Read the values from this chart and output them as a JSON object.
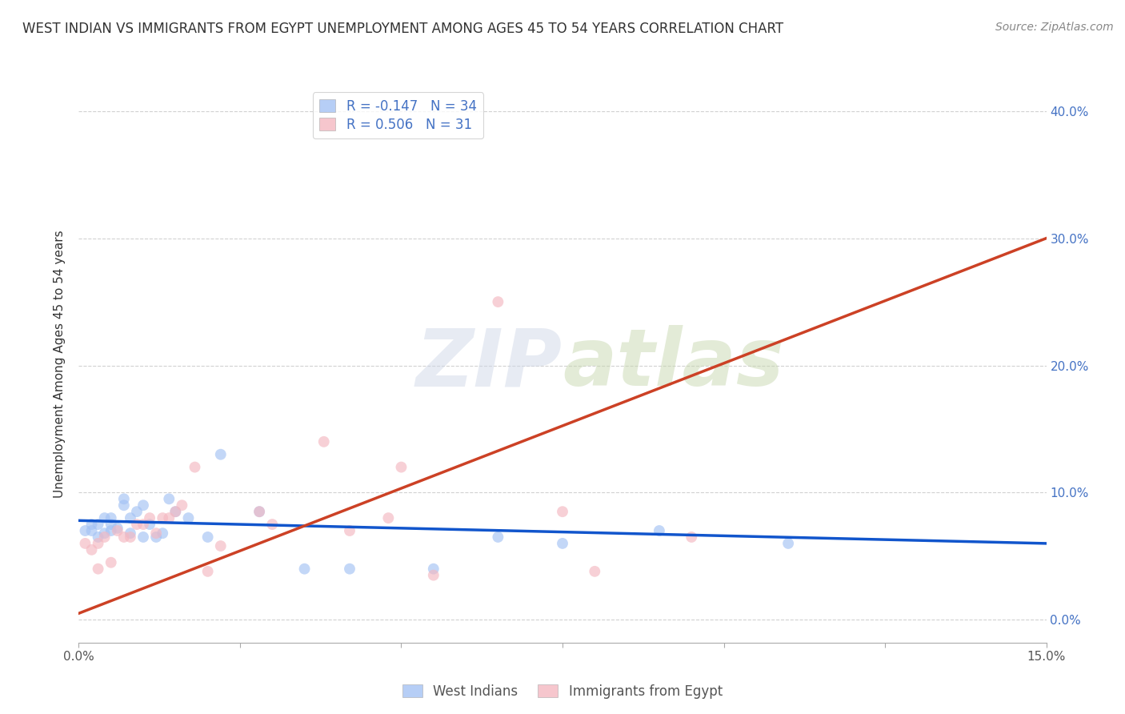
{
  "title": "WEST INDIAN VS IMMIGRANTS FROM EGYPT UNEMPLOYMENT AMONG AGES 45 TO 54 YEARS CORRELATION CHART",
  "source": "Source: ZipAtlas.com",
  "ylabel": "Unemployment Among Ages 45 to 54 years",
  "xlim": [
    0.0,
    0.15
  ],
  "ylim": [
    -0.018,
    0.42
  ],
  "watermark_zip": "ZIP",
  "watermark_atlas": "atlas",
  "blue_R": -0.147,
  "blue_N": 34,
  "pink_R": 0.506,
  "pink_N": 31,
  "blue_color": "#a4c2f4",
  "pink_color": "#f4b8c1",
  "blue_line_color": "#1155cc",
  "pink_line_color": "#cc4125",
  "legend_label_blue": "West Indians",
  "legend_label_pink": "Immigrants from Egypt",
  "blue_scatter_x": [
    0.001,
    0.002,
    0.002,
    0.003,
    0.003,
    0.004,
    0.004,
    0.005,
    0.005,
    0.005,
    0.006,
    0.007,
    0.007,
    0.008,
    0.008,
    0.009,
    0.01,
    0.01,
    0.011,
    0.012,
    0.013,
    0.014,
    0.015,
    0.017,
    0.02,
    0.022,
    0.028,
    0.035,
    0.042,
    0.055,
    0.065,
    0.075,
    0.09,
    0.11
  ],
  "blue_scatter_y": [
    0.07,
    0.07,
    0.075,
    0.065,
    0.075,
    0.068,
    0.08,
    0.07,
    0.075,
    0.08,
    0.072,
    0.09,
    0.095,
    0.068,
    0.08,
    0.085,
    0.09,
    0.065,
    0.075,
    0.065,
    0.068,
    0.095,
    0.085,
    0.08,
    0.065,
    0.13,
    0.085,
    0.04,
    0.04,
    0.04,
    0.065,
    0.06,
    0.07,
    0.06
  ],
  "pink_scatter_x": [
    0.001,
    0.002,
    0.003,
    0.003,
    0.004,
    0.005,
    0.006,
    0.007,
    0.008,
    0.009,
    0.01,
    0.011,
    0.012,
    0.013,
    0.014,
    0.015,
    0.016,
    0.018,
    0.02,
    0.022,
    0.028,
    0.03,
    0.038,
    0.042,
    0.048,
    0.05,
    0.055,
    0.065,
    0.075,
    0.08,
    0.095
  ],
  "pink_scatter_y": [
    0.06,
    0.055,
    0.04,
    0.06,
    0.065,
    0.045,
    0.07,
    0.065,
    0.065,
    0.075,
    0.075,
    0.08,
    0.068,
    0.08,
    0.08,
    0.085,
    0.09,
    0.12,
    0.038,
    0.058,
    0.085,
    0.075,
    0.14,
    0.07,
    0.08,
    0.12,
    0.035,
    0.25,
    0.085,
    0.038,
    0.065
  ],
  "blue_line_x": [
    0.0,
    0.15
  ],
  "blue_line_y": [
    0.078,
    0.06
  ],
  "pink_line_x": [
    0.0,
    0.15
  ],
  "pink_line_y": [
    0.005,
    0.3
  ],
  "y_ticks": [
    0.0,
    0.1,
    0.2,
    0.3,
    0.4
  ],
  "y_tick_labels": [
    "0.0%",
    "10.0%",
    "20.0%",
    "30.0%",
    "40.0%"
  ],
  "x_ticks": [
    0.0,
    0.025,
    0.05,
    0.075,
    0.1,
    0.125,
    0.15
  ],
  "x_tick_labels": [
    "0.0%",
    "",
    "",
    "",
    "",
    "",
    "15.0%"
  ],
  "grid_color": "#cccccc",
  "background_color": "#ffffff",
  "title_fontsize": 12,
  "axis_label_fontsize": 11,
  "tick_fontsize": 11,
  "source_fontsize": 10,
  "marker_size": 100,
  "line_width": 2.5,
  "tick_color": "#4472c4"
}
